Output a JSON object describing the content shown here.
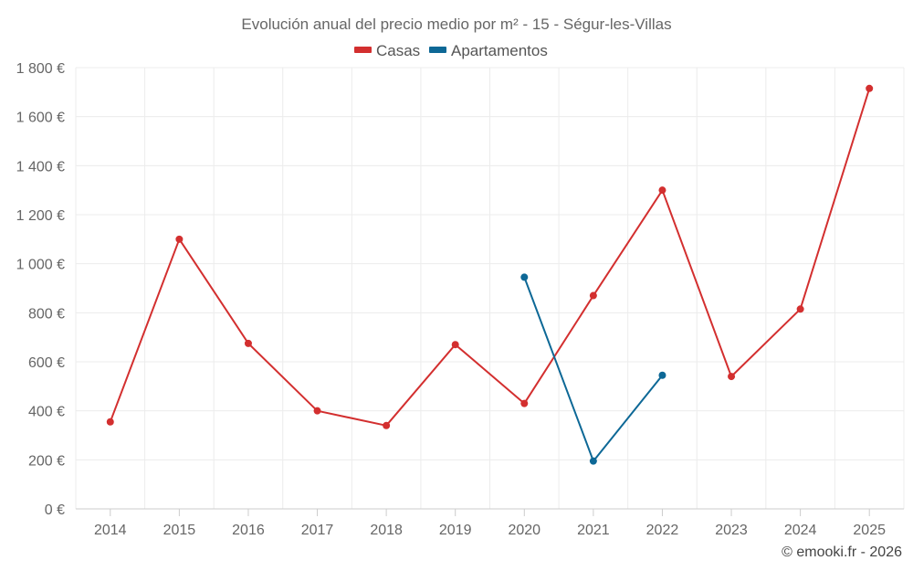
{
  "chart_data": {
    "type": "line",
    "title": "Evolución anual del precio medio por m² - 15 - Ségur-les-Villas",
    "x": [
      "2014",
      "2015",
      "2016",
      "2017",
      "2018",
      "2019",
      "2020",
      "2021",
      "2022",
      "2023",
      "2024",
      "2025"
    ],
    "ylim": [
      0,
      1800
    ],
    "y_ticks": [
      0,
      200,
      400,
      600,
      800,
      1000,
      1200,
      1400,
      1600,
      1800
    ],
    "y_tick_labels": [
      "0 €",
      "200 €",
      "400 €",
      "600 €",
      "800 €",
      "1 000 €",
      "1 200 €",
      "1 400 €",
      "1 600 €",
      "1 800 €"
    ],
    "grid": true,
    "legend_position": "top-center",
    "series": [
      {
        "name": "Casas",
        "color": "#d32f2f",
        "values": [
          355,
          1100,
          675,
          400,
          340,
          670,
          430,
          870,
          1300,
          540,
          815,
          1715
        ]
      },
      {
        "name": "Apartamentos",
        "color": "#0d6896",
        "values": [
          null,
          null,
          null,
          null,
          null,
          null,
          945,
          195,
          545,
          null,
          null,
          null
        ]
      }
    ],
    "credit": "© emooki.fr - 2026"
  }
}
